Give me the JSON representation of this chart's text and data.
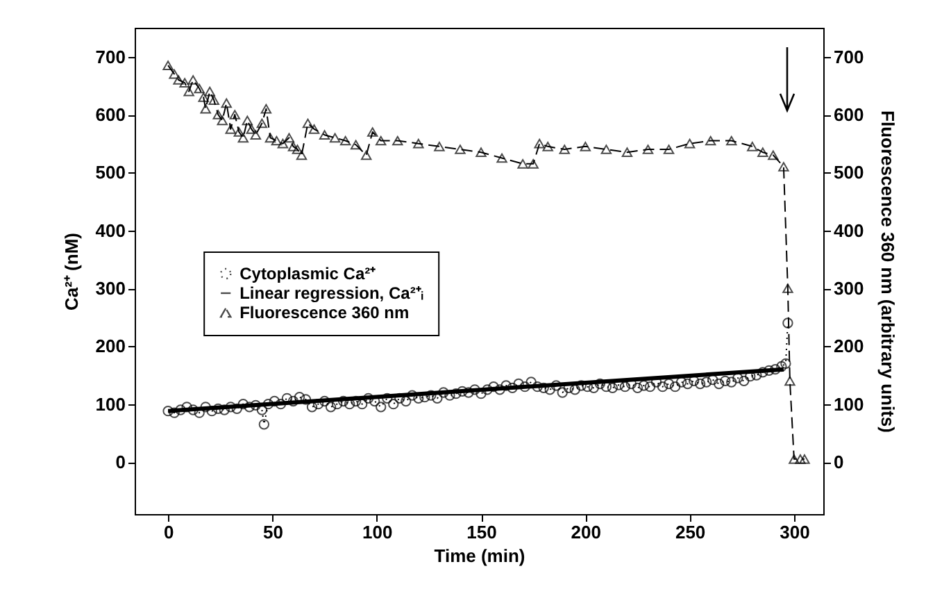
{
  "chart_data": {
    "type": "line",
    "xlabel": "Time (min)",
    "ylabel": "Ca²⁺ (nM)",
    "y2label": "Fluorescence 360 nm (arbitrary units)",
    "xlim": [
      -16,
      314
    ],
    "xticks": [
      0,
      50,
      100,
      150,
      200,
      250,
      300
    ],
    "ylim": [
      -90,
      750
    ],
    "yticks": [
      0,
      100,
      200,
      300,
      400,
      500,
      600,
      700
    ],
    "y2lim": [
      -90,
      750
    ],
    "y2ticks": [
      0,
      100,
      200,
      300,
      400,
      500,
      600,
      700
    ],
    "legend": "left",
    "grid": false,
    "series": [
      {
        "name": "Cytoplasmic Ca²⁺",
        "color": "#000000",
        "marker": "circle",
        "line_style": "dotted",
        "x": [
          0,
          3,
          6,
          9,
          12,
          15,
          18,
          21,
          24,
          27,
          30,
          33,
          36,
          39,
          42,
          45,
          46,
          48,
          51,
          54,
          57,
          60,
          63,
          66,
          69,
          72,
          75,
          78,
          81,
          84,
          87,
          90,
          93,
          96,
          99,
          102,
          105,
          108,
          111,
          114,
          117,
          120,
          123,
          126,
          129,
          132,
          135,
          138,
          141,
          144,
          147,
          150,
          153,
          156,
          159,
          162,
          165,
          168,
          171,
          174,
          177,
          180,
          183,
          186,
          189,
          192,
          195,
          198,
          201,
          204,
          207,
          210,
          213,
          216,
          219,
          222,
          225,
          228,
          231,
          234,
          237,
          240,
          243,
          246,
          249,
          252,
          255,
          258,
          261,
          264,
          267,
          270,
          273,
          276,
          279,
          282,
          285,
          288,
          291,
          294,
          296,
          297
        ],
        "values": [
          88,
          85,
          90,
          95,
          90,
          85,
          95,
          88,
          92,
          90,
          95,
          92,
          100,
          95,
          98,
          90,
          65,
          100,
          105,
          100,
          110,
          105,
          112,
          108,
          95,
          100,
          105,
          95,
          100,
          105,
          100,
          105,
          100,
          110,
          105,
          95,
          110,
          100,
          110,
          105,
          115,
          110,
          112,
          115,
          110,
          120,
          115,
          118,
          122,
          120,
          125,
          118,
          125,
          130,
          125,
          132,
          128,
          135,
          130,
          138,
          130,
          128,
          125,
          132,
          120,
          128,
          125,
          132,
          130,
          128,
          135,
          130,
          128,
          133,
          130,
          135,
          128,
          132,
          130,
          138,
          130,
          135,
          130,
          138,
          135,
          140,
          135,
          138,
          142,
          135,
          140,
          138,
          145,
          140,
          148,
          150,
          155,
          158,
          160,
          165,
          170,
          240
        ]
      },
      {
        "name": "Linear regression, Ca²⁺ᵢ",
        "color": "#000000",
        "marker": "none",
        "line_style": "solid",
        "x": [
          0,
          295
        ],
        "values": [
          88,
          160
        ]
      },
      {
        "name": "Fluorescence 360 nm",
        "color": "#000000",
        "marker": "triangle",
        "line_style": "dashed",
        "axis": "y2",
        "x": [
          0,
          3,
          5,
          8,
          10,
          12,
          15,
          17,
          18,
          20,
          22,
          24,
          26,
          28,
          30,
          32,
          34,
          36,
          38,
          40,
          42,
          45,
          47,
          49,
          52,
          55,
          58,
          60,
          62,
          64,
          67,
          70,
          75,
          80,
          85,
          90,
          95,
          98,
          102,
          110,
          120,
          130,
          140,
          150,
          160,
          170,
          175,
          178,
          182,
          190,
          200,
          210,
          220,
          230,
          240,
          250,
          260,
          270,
          280,
          285,
          290,
          295,
          297,
          298,
          300,
          303,
          305
        ],
        "values": [
          685,
          670,
          660,
          655,
          640,
          660,
          645,
          630,
          610,
          640,
          625,
          600,
          590,
          620,
          575,
          600,
          570,
          560,
          590,
          575,
          565,
          585,
          610,
          560,
          555,
          550,
          560,
          545,
          540,
          530,
          585,
          575,
          565,
          560,
          555,
          548,
          530,
          570,
          555,
          555,
          550,
          545,
          540,
          535,
          525,
          515,
          515,
          550,
          545,
          540,
          545,
          540,
          535,
          540,
          540,
          550,
          555,
          555,
          545,
          535,
          530,
          510,
          300,
          140,
          5,
          5,
          5
        ]
      }
    ]
  }
}
